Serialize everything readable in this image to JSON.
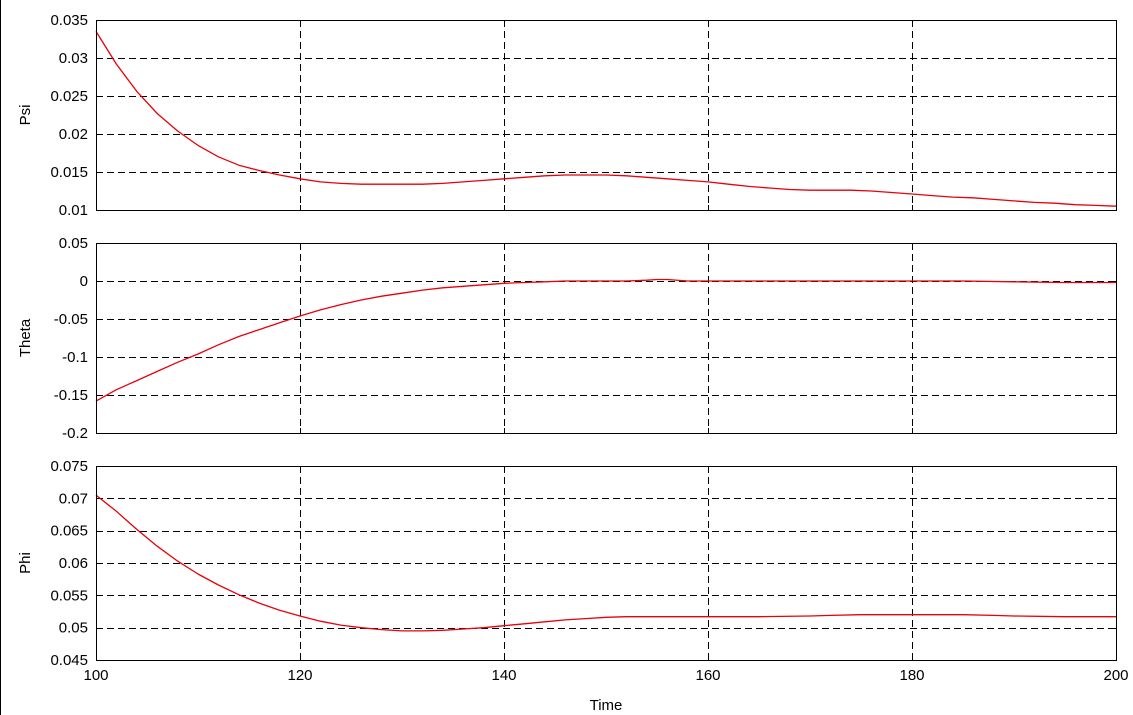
{
  "chart_data": [
    {
      "type": "line",
      "ylabel": "Psi",
      "xlabel": "",
      "xlim": [
        100,
        200
      ],
      "ylim": [
        0.01,
        0.035
      ],
      "xticks": [
        "100",
        "120",
        "140",
        "160",
        "180",
        "200"
      ],
      "yticks": [
        "0.01",
        "0.015",
        "0.02",
        "0.025",
        "0.03",
        "0.035"
      ],
      "grid": true,
      "colors": {
        "series": "#e8000b"
      },
      "series": [
        {
          "x": [
            100,
            102,
            104,
            106,
            108,
            110,
            112,
            114,
            116,
            118,
            120,
            122,
            124,
            126,
            128,
            130,
            132,
            134,
            136,
            138,
            140,
            142,
            144,
            146,
            148,
            150,
            152,
            154,
            156,
            158,
            160,
            162,
            164,
            166,
            168,
            170,
            172,
            174,
            176,
            178,
            180,
            182,
            184,
            186,
            188,
            190,
            192,
            194,
            196,
            198,
            200
          ],
          "values": [
            0.0335,
            0.0292,
            0.0256,
            0.0227,
            0.0204,
            0.0185,
            0.017,
            0.0159,
            0.0152,
            0.0146,
            0.0141,
            0.0137,
            0.0135,
            0.0134,
            0.0134,
            0.0134,
            0.0134,
            0.0135,
            0.0137,
            0.0139,
            0.0141,
            0.0143,
            0.0145,
            0.0146,
            0.0146,
            0.0146,
            0.0145,
            0.0143,
            0.0141,
            0.0139,
            0.0137,
            0.0134,
            0.0131,
            0.0129,
            0.0127,
            0.0126,
            0.0126,
            0.0126,
            0.0125,
            0.0123,
            0.0121,
            0.0119,
            0.0117,
            0.0116,
            0.0114,
            0.0112,
            0.011,
            0.0109,
            0.0107,
            0.0106,
            0.0105
          ]
        }
      ]
    },
    {
      "type": "line",
      "ylabel": "Theta",
      "xlabel": "",
      "xlim": [
        100,
        200
      ],
      "ylim": [
        -0.2,
        0.05
      ],
      "xticks": [
        "100",
        "120",
        "140",
        "160",
        "180",
        "200"
      ],
      "yticks": [
        "-0.2",
        "-0.15",
        "-0.1",
        "-0.05",
        "0",
        "0.05"
      ],
      "grid": true,
      "colors": {
        "series": "#e8000b"
      },
      "series": [
        {
          "x": [
            100,
            102,
            104,
            106,
            108,
            110,
            112,
            114,
            116,
            118,
            120,
            122,
            124,
            126,
            128,
            130,
            132,
            134,
            136,
            138,
            140,
            142,
            144,
            146,
            148,
            150,
            152,
            154,
            155,
            156,
            158,
            160,
            165,
            170,
            175,
            180,
            185,
            190,
            195,
            200
          ],
          "values": [
            -0.158,
            -0.143,
            -0.131,
            -0.119,
            -0.107,
            -0.096,
            -0.084,
            -0.073,
            -0.064,
            -0.055,
            -0.046,
            -0.038,
            -0.031,
            -0.025,
            -0.02,
            -0.016,
            -0.012,
            -0.009,
            -0.007,
            -0.005,
            -0.003,
            -0.002,
            -0.001,
            0.0,
            0.0,
            0.0,
            0.0,
            0.001,
            0.002,
            0.002,
            0.0,
            0.0,
            0.0,
            0.0,
            0.0,
            0.0,
            0.0,
            -0.001,
            -0.002,
            -0.002
          ]
        }
      ]
    },
    {
      "type": "line",
      "ylabel": "Phi",
      "xlabel": "Time",
      "xlim": [
        100,
        200
      ],
      "ylim": [
        0.045,
        0.075
      ],
      "xticks": [
        "100",
        "120",
        "140",
        "160",
        "180",
        "200"
      ],
      "yticks": [
        "0.045",
        "0.05",
        "0.055",
        "0.06",
        "0.065",
        "0.07",
        "0.075"
      ],
      "grid": true,
      "colors": {
        "series": "#e8000b"
      },
      "series": [
        {
          "x": [
            100,
            102,
            104,
            106,
            108,
            110,
            112,
            114,
            116,
            118,
            120,
            122,
            124,
            126,
            128,
            130,
            132,
            134,
            136,
            138,
            140,
            142,
            144,
            146,
            148,
            150,
            152,
            155,
            160,
            165,
            170,
            172,
            175,
            180,
            185,
            188,
            190,
            195,
            200
          ],
          "values": [
            0.0705,
            0.068,
            0.0652,
            0.0626,
            0.0603,
            0.0583,
            0.0566,
            0.0551,
            0.0538,
            0.0527,
            0.0518,
            0.051,
            0.0504,
            0.05,
            0.0497,
            0.0495,
            0.0495,
            0.0496,
            0.0498,
            0.05,
            0.0503,
            0.0506,
            0.0509,
            0.0512,
            0.0514,
            0.0516,
            0.0517,
            0.0517,
            0.0517,
            0.0517,
            0.0518,
            0.0519,
            0.052,
            0.052,
            0.052,
            0.0519,
            0.0518,
            0.0517,
            0.0517
          ]
        }
      ]
    }
  ]
}
